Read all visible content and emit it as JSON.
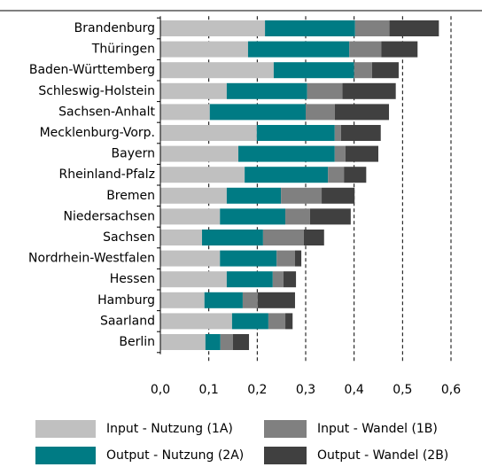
{
  "chart_data": {
    "type": "stacked-bar-horizontal",
    "categories": [
      "Brandenburg",
      "Thüringen",
      "Baden-Württemberg",
      "Schleswig-Holstein",
      "Sachsen-Anhalt",
      "Mecklenburg-Vorp.",
      "Bayern",
      "Rheinland-Pfalz",
      "Bremen",
      "Niedersachsen",
      "Sachsen",
      "Nordrhein-Westfalen",
      "Hessen",
      "Hamburg",
      "Saarland",
      "Berlin"
    ],
    "series": [
      {
        "name": "Input - Nutzung (1A)",
        "color": "#c0c0c0",
        "values": [
          0.216,
          0.181,
          0.234,
          0.137,
          0.102,
          0.199,
          0.161,
          0.174,
          0.137,
          0.123,
          0.086,
          0.123,
          0.137,
          0.091,
          0.148,
          0.093
        ]
      },
      {
        "name": "Output - Nutzung (2A)",
        "color": "#007b84",
        "values": [
          0.186,
          0.209,
          0.166,
          0.166,
          0.198,
          0.161,
          0.199,
          0.172,
          0.112,
          0.135,
          0.126,
          0.117,
          0.095,
          0.079,
          0.075,
          0.031
        ]
      },
      {
        "name": "Input - Wandel (1B)",
        "color": "#808080",
        "values": [
          0.071,
          0.066,
          0.037,
          0.073,
          0.06,
          0.013,
          0.022,
          0.033,
          0.084,
          0.051,
          0.084,
          0.038,
          0.022,
          0.031,
          0.035,
          0.026
        ]
      },
      {
        "name": "Output - Wandel (2B)",
        "color": "#404040",
        "values": [
          0.102,
          0.075,
          0.055,
          0.11,
          0.112,
          0.082,
          0.068,
          0.046,
          0.068,
          0.084,
          0.042,
          0.013,
          0.026,
          0.077,
          0.015,
          0.033
        ]
      }
    ],
    "xlim": [
      0,
      0.6
    ],
    "xticks": [
      {
        "value": 0,
        "label": "0,0"
      },
      {
        "value": 0.1,
        "label": "0,1"
      },
      {
        "value": 0.2,
        "label": "0,2"
      },
      {
        "value": 0.3,
        "label": "0,3"
      },
      {
        "value": 0.4,
        "label": "0,4"
      },
      {
        "value": 0.5,
        "label": "0,5"
      },
      {
        "value": 0.6,
        "label": "0,6"
      }
    ],
    "grid": true
  }
}
